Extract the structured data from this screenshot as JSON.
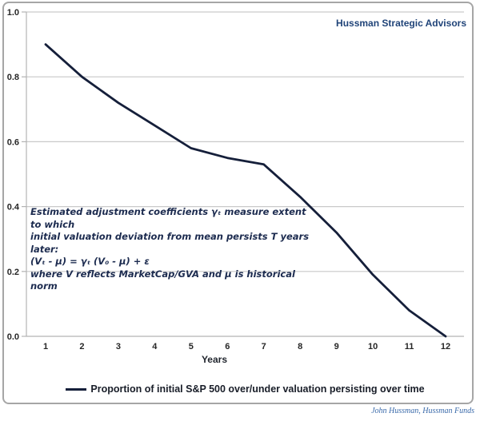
{
  "header": {
    "brand": "Hussman Strategic Advisors"
  },
  "annotation": {
    "lines": [
      "Estimated adjustment coefficients γₜ measure extent to which",
      "initial valuation deviation from mean persists T years later:",
      "(Vₜ - μ) = γₜ (V₀ - μ) + ε",
      "where V reflects MarketCap/GVA and μ is historical norm"
    ]
  },
  "footer": {
    "credit": "John Hussman, Hussman Funds"
  },
  "chart_data": {
    "type": "line",
    "x": [
      1,
      2,
      3,
      4,
      5,
      6,
      7,
      8,
      9,
      10,
      11,
      12
    ],
    "series": [
      {
        "name": "Proportion of initial S&P 500 over/under valuation persisting over time",
        "values": [
          0.9,
          0.8,
          0.72,
          0.65,
          0.58,
          0.55,
          0.53,
          0.43,
          0.32,
          0.19,
          0.08,
          0.0
        ],
        "color": "#151f3a"
      }
    ],
    "xlabel": "Years",
    "ylabel": "",
    "xlim": [
      1,
      12
    ],
    "ylim": [
      0.0,
      1.0
    ],
    "yticks": [
      0.0,
      0.2,
      0.4,
      0.6,
      0.8,
      1.0
    ],
    "ytick_labels": [
      "0.0",
      "0.2",
      "0.4",
      "0.6",
      "0.8",
      "1.0"
    ],
    "xtick_labels": [
      "1",
      "2",
      "3",
      "4",
      "5",
      "6",
      "7",
      "8",
      "9",
      "10",
      "11",
      "12"
    ],
    "grid": true,
    "legend_position": "bottom",
    "markers": false
  },
  "colors": {
    "line": "#151f3a",
    "grid": "#c9c9c9",
    "axis": "#b3b3b3",
    "tick_text": "#262626",
    "brand_text": "#1f4378",
    "annotation_text": "#1c2b4f",
    "credit_text": "#3a6aaa",
    "frame_border": "#a6a6a6"
  }
}
